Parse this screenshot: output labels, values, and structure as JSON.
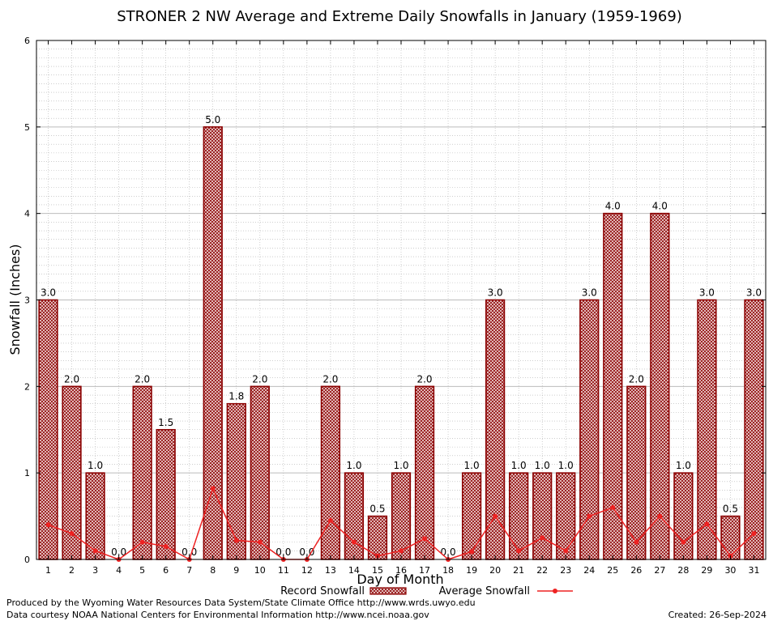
{
  "chart_data": {
    "type": "bar",
    "title": "STRONER 2 NW Average and Extreme Daily Snowfalls in January (1959-1969)",
    "xlabel": "Day of Month",
    "ylabel": "Snowfall (Inches)",
    "ylim": [
      0,
      6
    ],
    "y_ticks": [
      "0",
      "1",
      "2",
      "3",
      "4",
      "5",
      "6"
    ],
    "categories": [
      "1",
      "2",
      "3",
      "4",
      "5",
      "6",
      "7",
      "8",
      "9",
      "10",
      "11",
      "12",
      "13",
      "14",
      "15",
      "16",
      "17",
      "18",
      "19",
      "20",
      "21",
      "22",
      "23",
      "24",
      "25",
      "26",
      "27",
      "28",
      "29",
      "30",
      "31"
    ],
    "series": [
      {
        "name": "Record Snowfall",
        "kind": "bar",
        "color": "#8b0000",
        "values": [
          3.0,
          2.0,
          1.0,
          0.0,
          2.0,
          1.5,
          0.0,
          5.0,
          1.8,
          2.0,
          0.0,
          0.0,
          2.0,
          1.0,
          0.5,
          1.0,
          2.0,
          0.0,
          1.0,
          3.0,
          1.0,
          1.0,
          1.0,
          3.0,
          4.0,
          2.0,
          4.0,
          1.0,
          3.0,
          0.5,
          3.0
        ],
        "labels": [
          "3.0",
          "2.0",
          "1.0",
          "0.0",
          "2.0",
          "1.5",
          "0.0",
          "5.0",
          "1.8",
          "2.0",
          "0.0",
          "0.0",
          "2.0",
          "1.0",
          "0.5",
          "1.0",
          "2.0",
          "0.0",
          "1.0",
          "3.0",
          "1.0",
          "1.0",
          "1.0",
          "3.0",
          "4.0",
          "2.0",
          "4.0",
          "1.0",
          "3.0",
          "0.5",
          "3.0"
        ]
      },
      {
        "name": "Average Snowfall",
        "kind": "line",
        "color": "#ee2222",
        "values": [
          0.4,
          0.3,
          0.1,
          0.0,
          0.2,
          0.15,
          0.0,
          0.82,
          0.22,
          0.2,
          0.0,
          0.0,
          0.45,
          0.2,
          0.04,
          0.1,
          0.24,
          0.0,
          0.09,
          0.5,
          0.1,
          0.25,
          0.1,
          0.5,
          0.6,
          0.2,
          0.5,
          0.2,
          0.41,
          0.04,
          0.3
        ]
      }
    ],
    "legend": {
      "position": "bottom-center",
      "record_label": "Record Snowfall",
      "average_label": "Average Snowfall"
    },
    "grid": true
  },
  "footer": {
    "produced_by": "Produced by the Wyoming Water Resources Data System/State Climate Office http://www.wrds.uwyo.edu",
    "data_courtesy": "Data courtesy NOAA National Centers for Environmental Information http://www.ncei.noaa.gov",
    "created": "Created:  26-Sep-2024"
  }
}
